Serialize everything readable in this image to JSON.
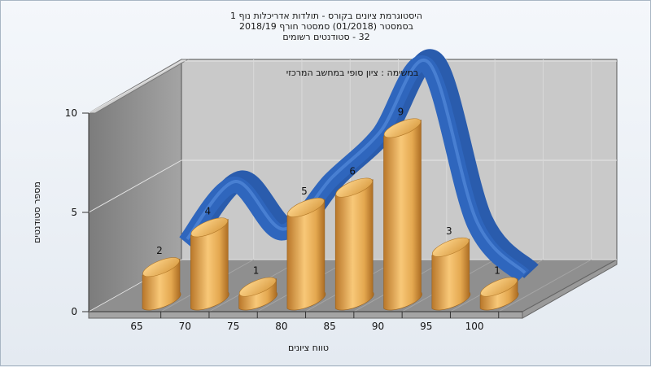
{
  "chart_data": {
    "type": "bar",
    "title_lines": [
      "היסטוגרמת ציונים בקורס - תולדות אדריכלות נוף 1",
      "בסמסטר  (01/2018)  סמסטר חורף 2018/19",
      "32 - סטודנטים רשומים"
    ],
    "subtitle": "במשימה : ציון סופי במחשב המרכזי",
    "xlabel": "טווח ציונים",
    "ylabel": "מספר סטודנטים",
    "categories": [
      "65",
      "70",
      "75",
      "80",
      "85",
      "90",
      "95",
      "100"
    ],
    "x_ticks": [
      "65",
      "70",
      "75",
      "80",
      "85",
      "90",
      "95",
      "100"
    ],
    "y_ticks": [
      "0",
      "5",
      "10"
    ],
    "ylim": [
      0,
      10
    ],
    "series": [
      {
        "values": [
          2,
          4,
          1,
          5,
          6,
          9,
          3,
          1
        ]
      }
    ],
    "data_labels": [
      "2",
      "4",
      "1",
      "5",
      "6",
      "9",
      "3",
      "1"
    ],
    "curve": [
      2.1,
      5.0,
      2.6,
      5.2,
      7.5,
      11.0,
      3.0,
      0.4
    ],
    "colors": {
      "bar": "#e0a040",
      "curve": "#2f66bd",
      "floor": "#8f8f8f",
      "wall": "#c8c8c8"
    }
  }
}
